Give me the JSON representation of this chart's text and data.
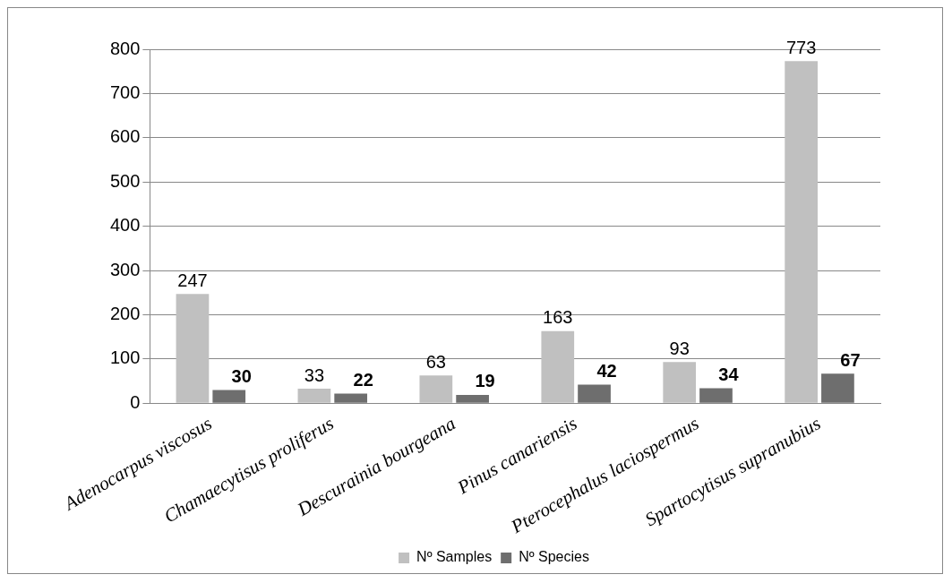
{
  "chart_data": {
    "type": "bar",
    "categories": [
      "Adenocarpus viscosus",
      "Chamaecytisus proliferus",
      "Descurainia bourgeana",
      "Pinus canariensis",
      "Pterocephalus laciospermus",
      "Spartocytisus supranubius"
    ],
    "series": [
      {
        "name": "Nº Samples",
        "color": "#c0c0c0",
        "values": [
          247,
          33,
          63,
          163,
          93,
          773
        ]
      },
      {
        "name": "Nº Species",
        "color": "#6e6e6e",
        "values": [
          30,
          22,
          19,
          42,
          34,
          67
        ]
      }
    ],
    "ylim": [
      0,
      800
    ],
    "yticks": [
      0,
      100,
      200,
      300,
      400,
      500,
      600,
      700,
      800
    ],
    "grid": "y",
    "legend": "bottom",
    "data_labels": true
  }
}
